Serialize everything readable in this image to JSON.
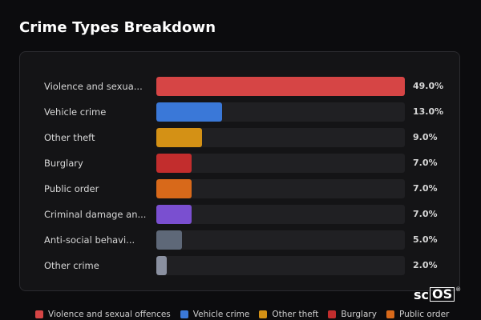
{
  "title": "Crime Types Breakdown",
  "colors": {
    "violence": "#d64545",
    "vehicle": "#3a78d8",
    "other_theft": "#d49115",
    "burglary": "#c22d2d",
    "public_order": "#d8691a",
    "criminal_damage": "#7a4fd0",
    "anti_social": "#5e6878",
    "other_crime": "#8a90a0"
  },
  "chart_data": {
    "type": "bar",
    "orientation": "horizontal",
    "categories": [
      "Violence and sexua...",
      "Vehicle crime",
      "Other theft",
      "Burglary",
      "Public order",
      "Criminal damage an...",
      "Anti-social behavi...",
      "Other crime"
    ],
    "values": [
      49.0,
      13.0,
      9.0,
      7.0,
      7.0,
      7.0,
      5.0,
      2.0
    ],
    "value_labels": [
      "49.0%",
      "13.0%",
      "9.0%",
      "7.0%",
      "7.0%",
      "7.0%",
      "5.0%",
      "2.0%"
    ],
    "bar_colors": [
      "#d64545",
      "#3a78d8",
      "#d49115",
      "#c22d2d",
      "#d8691a",
      "#7a4fd0",
      "#5e6878",
      "#8a90a0"
    ],
    "xlim": [
      0,
      49.0
    ],
    "title": "Crime Types Breakdown",
    "legend": [
      {
        "label": "Violence and sexual offences",
        "color": "#d64545"
      },
      {
        "label": "Vehicle crime",
        "color": "#3a78d8"
      },
      {
        "label": "Other theft",
        "color": "#d49115"
      },
      {
        "label": "Burglary",
        "color": "#c22d2d"
      },
      {
        "label": "Public order",
        "color": "#d8691a"
      }
    ]
  },
  "logo": {
    "prefix": "sc",
    "boxed": "OS",
    "mark": "®"
  }
}
